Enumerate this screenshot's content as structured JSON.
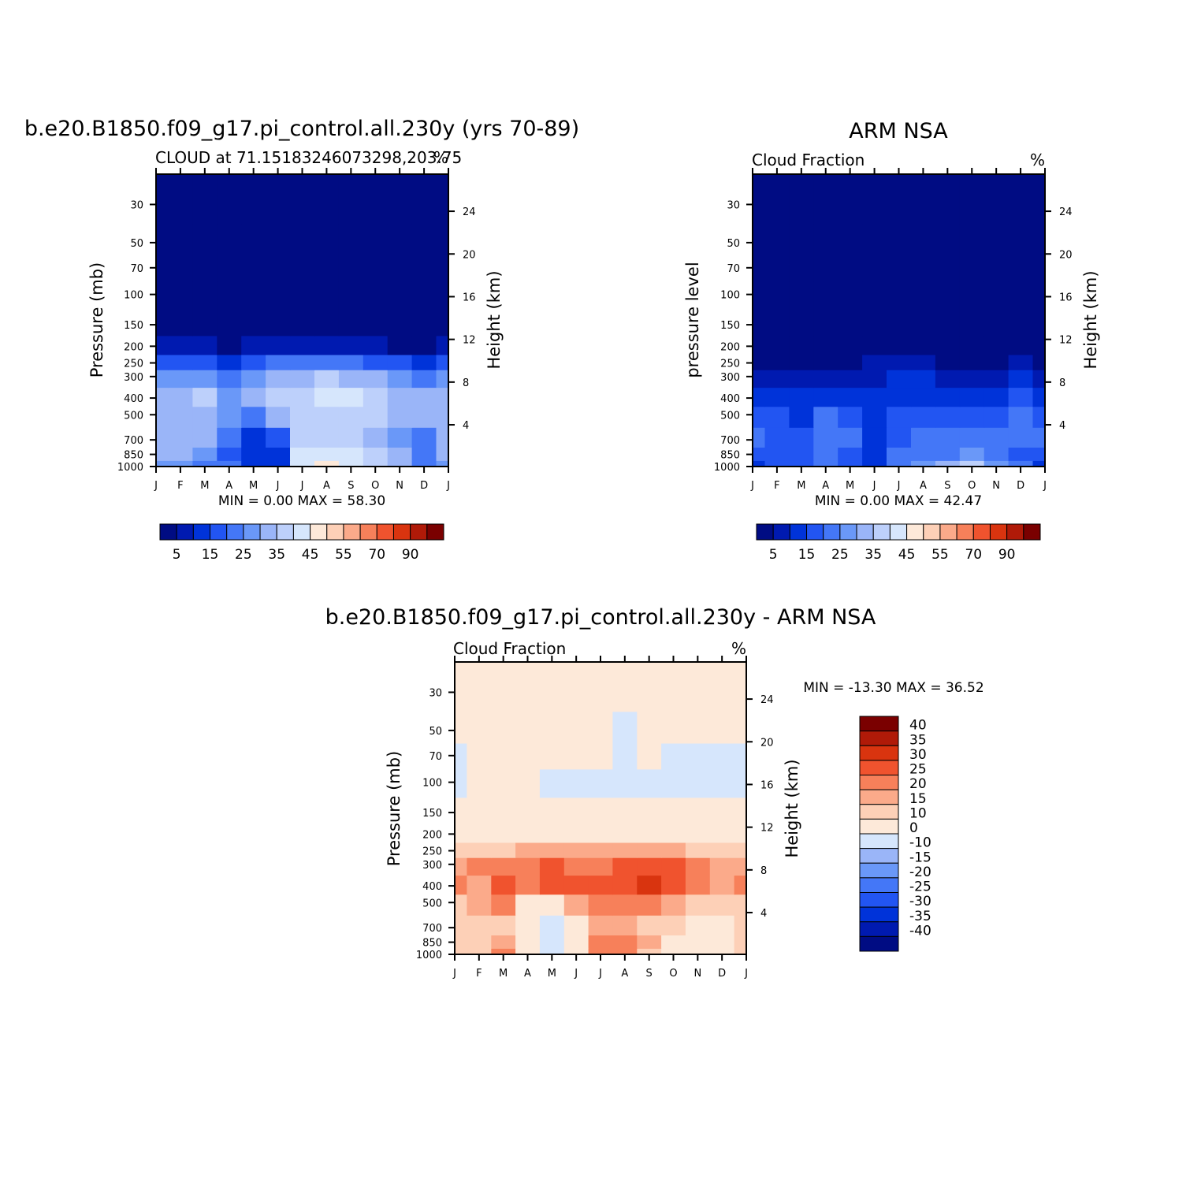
{
  "figure": {
    "panel_model_title": "b.e20.B1850.f09_g17.pi_control.all.230y (yrs 70-89)",
    "panel_obs_title": "ARM  NSA",
    "panel_diff_title": "b.e20.B1850.f09_g17.pi_control.all.230y - ARM NSA"
  },
  "panels": [
    {
      "key": "model",
      "left_label": "CLOUD at 71.15183246073298,203.75",
      "unit": "%",
      "ylabel_left": "Pressure  (mb)",
      "ylabel_right": "Height  (km)",
      "minmax": "MIN =      0.00  MAX =     58.30"
    },
    {
      "key": "obs",
      "left_label": "Cloud Fraction",
      "unit": "%",
      "ylabel_left": "pressure  level",
      "ylabel_right": "Height  (km)",
      "minmax": "MIN =      0.00  MAX =     42.47"
    },
    {
      "key": "diff",
      "left_label": "Cloud Fraction",
      "unit": "%",
      "ylabel_left": "Pressure  (mb)",
      "ylabel_right": "Height  (km)",
      "minmax": "MIN =  -13.30  MAX =     36.52"
    }
  ],
  "chart_data": [
    {
      "type": "heatmap",
      "title": "b.e20.B1850.f09_g17.pi_control.all.230y (yrs 70-89)",
      "subtitle": "CLOUD at 71.15183246073298,203.75",
      "xlabel": "",
      "ylabel": "Pressure (mb)",
      "ylabel_right": "Height (km)",
      "x": [
        "J",
        "F",
        "M",
        "A",
        "M",
        "J",
        "J",
        "A",
        "S",
        "O",
        "N",
        "D",
        "J"
      ],
      "y_pressure": [
        1000,
        850,
        700,
        500,
        400,
        300,
        250,
        200,
        150,
        100,
        70,
        50,
        30
      ],
      "y_height_ticks": [
        4,
        8,
        12,
        16,
        20,
        24
      ],
      "levels": [
        5,
        10,
        15,
        20,
        25,
        30,
        35,
        40,
        45,
        50,
        55,
        60,
        70,
        80,
        90
      ],
      "colorbar_labels": [
        "5",
        "15",
        "25",
        "35",
        "45",
        "55",
        "70",
        "90"
      ],
      "values": [
        [
          26,
          28,
          24,
          20,
          14,
          14,
          42,
          46,
          44,
          38,
          34,
          20,
          26
        ],
        [
          30,
          30,
          26,
          18,
          12,
          14,
          40,
          44,
          42,
          36,
          30,
          20,
          30
        ],
        [
          30,
          32,
          30,
          22,
          14,
          16,
          36,
          38,
          36,
          34,
          28,
          22,
          30
        ],
        [
          32,
          34,
          34,
          28,
          24,
          30,
          36,
          38,
          38,
          36,
          32,
          30,
          32
        ],
        [
          30,
          32,
          38,
          28,
          30,
          36,
          38,
          44,
          42,
          38,
          32,
          30,
          30
        ],
        [
          26,
          28,
          26,
          22,
          26,
          32,
          34,
          36,
          34,
          32,
          28,
          24,
          26
        ],
        [
          15,
          17,
          17,
          13,
          17,
          21,
          23,
          23,
          21,
          19,
          15,
          13,
          15
        ],
        [
          5,
          5,
          5,
          3,
          5,
          5,
          5,
          5,
          5,
          5,
          3,
          3,
          5
        ],
        [
          1,
          1,
          1,
          1,
          1,
          1,
          1,
          1,
          1,
          1,
          1,
          1,
          1
        ],
        [
          0,
          0,
          0,
          0,
          0,
          0,
          0,
          0,
          0,
          0,
          0,
          0,
          0
        ],
        [
          0,
          0,
          0,
          0,
          0,
          0,
          0,
          0,
          0,
          0,
          0,
          0,
          0
        ],
        [
          0,
          0,
          0,
          0,
          0,
          0,
          0,
          0,
          0,
          0,
          0,
          0,
          0
        ],
        [
          0,
          0,
          0,
          0,
          0,
          0,
          0,
          0,
          0,
          0,
          0,
          0,
          0
        ]
      ],
      "min": 0.0,
      "max": 58.3,
      "units": "%"
    },
    {
      "type": "heatmap",
      "title": "ARM  NSA",
      "subtitle": "Cloud Fraction",
      "ylabel": "pressure level",
      "ylabel_right": "Height (km)",
      "x": [
        "J",
        "F",
        "M",
        "A",
        "M",
        "J",
        "J",
        "A",
        "S",
        "O",
        "N",
        "D",
        "J"
      ],
      "y_pressure": [
        1000,
        850,
        700,
        500,
        400,
        300,
        250,
        200,
        150,
        100,
        70,
        50,
        30
      ],
      "y_height_ticks": [
        4,
        8,
        12,
        16,
        20,
        24
      ],
      "levels": [
        5,
        10,
        15,
        20,
        25,
        30,
        35,
        40,
        45,
        50,
        55,
        60,
        70,
        80,
        90
      ],
      "colorbar_labels": [
        "5",
        "15",
        "25",
        "35",
        "45",
        "55",
        "70",
        "90"
      ],
      "values": [
        [
          14,
          16,
          18,
          22,
          18,
          10,
          22,
          26,
          30,
          36,
          28,
          20,
          14
        ],
        [
          18,
          18,
          18,
          20,
          16,
          10,
          20,
          22,
          24,
          26,
          22,
          18,
          18
        ],
        [
          20,
          18,
          16,
          22,
          20,
          12,
          18,
          22,
          22,
          22,
          20,
          22,
          20
        ],
        [
          18,
          16,
          14,
          20,
          18,
          14,
          16,
          18,
          18,
          18,
          18,
          20,
          18
        ],
        [
          10,
          10,
          10,
          12,
          12,
          10,
          12,
          14,
          14,
          12,
          12,
          16,
          10
        ],
        [
          8,
          8,
          6,
          8,
          8,
          8,
          10,
          10,
          8,
          8,
          8,
          10,
          8
        ],
        [
          4,
          4,
          3,
          4,
          4,
          5,
          6,
          5,
          4,
          4,
          4,
          5,
          4
        ],
        [
          1,
          1,
          1,
          1,
          1,
          2,
          2,
          2,
          1,
          1,
          1,
          1,
          1
        ],
        [
          0,
          0,
          0,
          0,
          0,
          0,
          0,
          0,
          0,
          0,
          0,
          0,
          0
        ],
        [
          0,
          0,
          0,
          0,
          0,
          0,
          0,
          0,
          0,
          0,
          0,
          0,
          0
        ],
        [
          0,
          0,
          0,
          0,
          0,
          0,
          0,
          0,
          0,
          0,
          0,
          0,
          0
        ],
        [
          0,
          0,
          0,
          0,
          0,
          0,
          0,
          0,
          0,
          0,
          0,
          0,
          0
        ],
        [
          0,
          0,
          0,
          0,
          0,
          0,
          0,
          0,
          0,
          0,
          0,
          0,
          0
        ]
      ],
      "min": 0.0,
      "max": 42.47,
      "units": "%"
    },
    {
      "type": "heatmap",
      "title": "b.e20.B1850.f09_g17.pi_control.all.230y - ARM NSA",
      "subtitle": "Cloud Fraction",
      "ylabel": "Pressure (mb)",
      "ylabel_right": "Height (km)",
      "x": [
        "J",
        "F",
        "M",
        "A",
        "M",
        "J",
        "J",
        "A",
        "S",
        "O",
        "N",
        "D",
        "J"
      ],
      "y_pressure": [
        1000,
        850,
        700,
        500,
        400,
        300,
        250,
        200,
        150,
        100,
        70,
        50,
        30
      ],
      "y_height_ticks": [
        4,
        8,
        12,
        16,
        20,
        24
      ],
      "levels": [
        -40,
        -35,
        -30,
        -25,
        -20,
        -15,
        -10,
        0,
        10,
        15,
        20,
        25,
        30,
        35,
        40
      ],
      "colorbar_labels": [
        "40",
        "35",
        "30",
        "25",
        "20",
        "15",
        "10",
        "0",
        "-10",
        "-15",
        "-20",
        "-25",
        "-30",
        "-35",
        "-40"
      ],
      "values": [
        [
          12,
          12,
          22,
          8,
          -4,
          4,
          20,
          20,
          14,
          2,
          6,
          0,
          12
        ],
        [
          12,
          10,
          16,
          2,
          -2,
          4,
          20,
          22,
          18,
          4,
          8,
          2,
          12
        ],
        [
          10,
          14,
          14,
          0,
          -6,
          4,
          18,
          16,
          14,
          12,
          8,
          0,
          10
        ],
        [
          14,
          18,
          20,
          8,
          6,
          16,
          20,
          20,
          20,
          18,
          14,
          10,
          14
        ],
        [
          20,
          18,
          26,
          22,
          26,
          26,
          26,
          28,
          30,
          28,
          22,
          16,
          20
        ],
        [
          18,
          20,
          24,
          24,
          26,
          24,
          24,
          26,
          28,
          26,
          20,
          16,
          18
        ],
        [
          11,
          13,
          14,
          16,
          18,
          16,
          18,
          18,
          18,
          16,
          12,
          11,
          11
        ],
        [
          4,
          4,
          4,
          4,
          5,
          4,
          4,
          4,
          4,
          4,
          4,
          4,
          4
        ],
        [
          2,
          2,
          2,
          2,
          2,
          2,
          2,
          2,
          2,
          2,
          2,
          2,
          2
        ],
        [
          -2,
          2,
          2,
          2,
          -2,
          -2,
          -2,
          -1,
          -2,
          -2,
          -2,
          -2,
          -2
        ],
        [
          -2,
          2,
          2,
          2,
          2,
          2,
          2,
          -2,
          2,
          -2,
          -2,
          -2,
          -2
        ],
        [
          0,
          2,
          2,
          2,
          2,
          2,
          2,
          -2,
          2,
          2,
          2,
          2,
          0
        ],
        [
          2,
          2,
          2,
          2,
          2,
          2,
          2,
          2,
          2,
          2,
          2,
          2,
          2
        ]
      ],
      "min": -13.3,
      "max": 36.52,
      "units": "%"
    }
  ],
  "colors": {
    "cmap_levels": [
      "#000c83",
      "#001ab0",
      "#0033d9",
      "#2255f2",
      "#4477f7",
      "#6a98f8",
      "#9ab5f8",
      "#bdd0fb",
      "#d6e6fc",
      "#fde9d9",
      "#fdd0b7",
      "#fbaa8a",
      "#f7805a",
      "#f0532e",
      "#d9340f",
      "#b01a08",
      "#7a0000"
    ],
    "diff_levels": [
      "#000c83",
      "#001ab0",
      "#0033d9",
      "#2255f2",
      "#4477f7",
      "#6a98f8",
      "#9ab5f8",
      "#d6e6fc",
      "#fde9d9",
      "#fdd0b7",
      "#fbaa8a",
      "#f7805a",
      "#f0532e",
      "#d9340f",
      "#b01a08",
      "#7a0000"
    ]
  }
}
